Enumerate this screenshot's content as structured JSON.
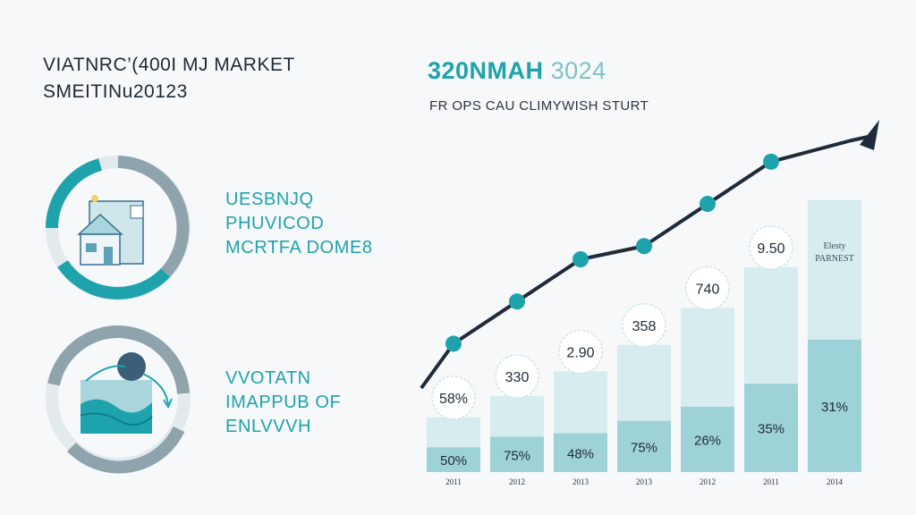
{
  "header": {
    "title_line1": "VIATNRC’(400I MJ MARKET",
    "title_line2": "SMEITINu20123",
    "headline_bold": "320NMAH",
    "headline_light": "3024",
    "subheading": "FR OPS CAU CLIMYWISH STURT"
  },
  "panels": [
    {
      "icon": "house-icon",
      "lines": [
        "UESBNJQ",
        "PHUVICOD",
        "MCRTFA DOME8"
      ]
    },
    {
      "icon": "wave-graph-icon",
      "lines": [
        "VVOTATN",
        "IMAPPUB OF",
        "ENLVVVH"
      ]
    }
  ],
  "colors": {
    "accent": "#1ea3ad",
    "ring_gray": "#8fa3ad",
    "bar_light": "#d7ecee",
    "bar_dark": "#9dd2d7",
    "line": "#1f2a3a",
    "bg": "#f6f8f9"
  },
  "chart_data": {
    "type": "bar",
    "categories": [
      "2011",
      "2012",
      "2013",
      "2013",
      "2012",
      "2011",
      "2014"
    ],
    "series": [
      {
        "values": [
          14,
          20,
          22,
          29,
          37,
          50,
          75
        ]
      },
      {
        "values": [
          31,
          43,
          57,
          72,
          93,
          116,
          154
        ]
      }
    ],
    "bar_labels": [
      "50%",
      "75%",
      "48%",
      "75%",
      "26%",
      "35%",
      "31%"
    ],
    "bubble_labels": [
      "58%",
      "330",
      "2.90",
      "358",
      "740",
      "9.50",
      ""
    ],
    "last_bar_label": [
      "Elesty",
      "PARNEST"
    ],
    "trend_line": [
      8,
      24,
      40,
      45,
      61,
      77,
      85
    ],
    "ylim": [
      0,
      160
    ]
  }
}
